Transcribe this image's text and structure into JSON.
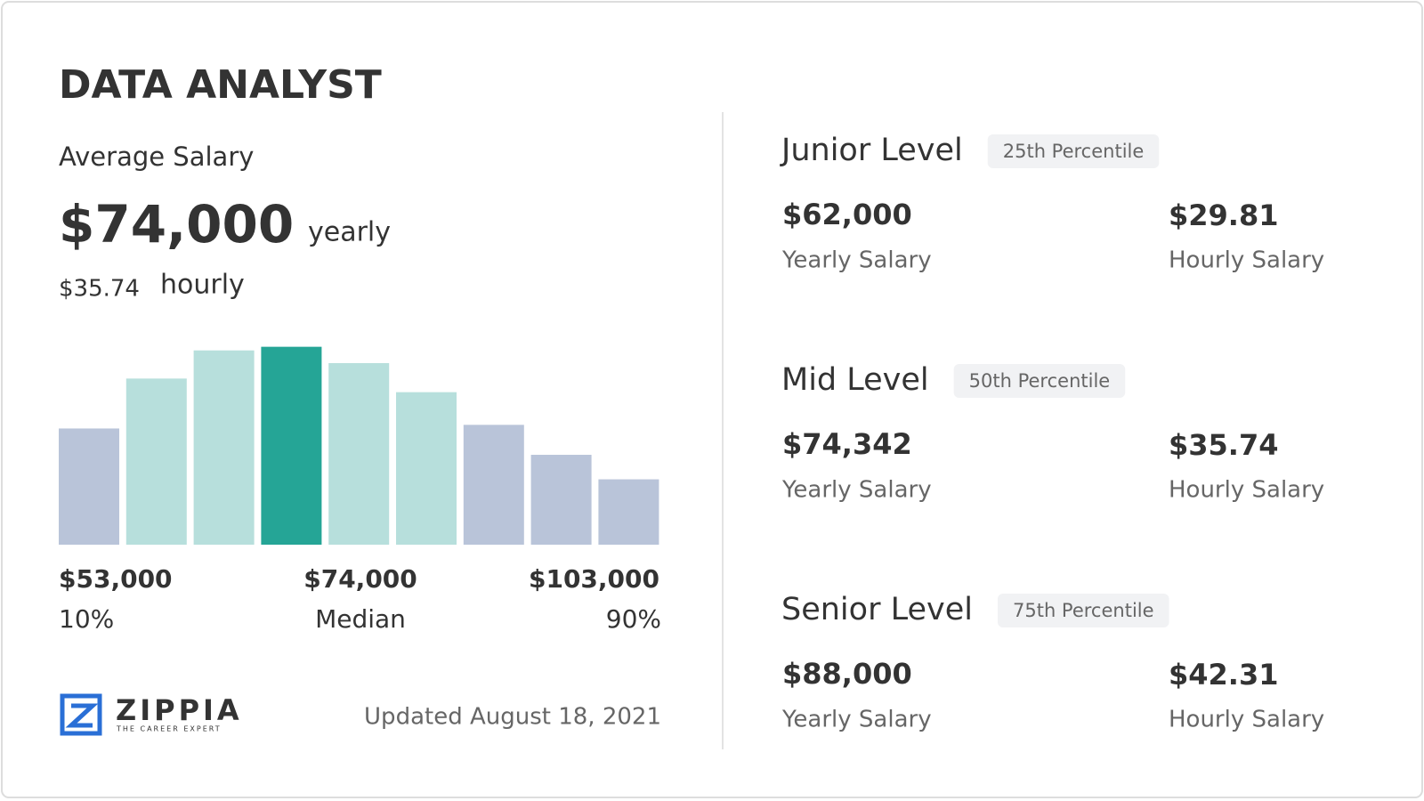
{
  "title": "DATA ANALYST",
  "average": {
    "label": "Average Salary",
    "yearly": "$74,000",
    "yearly_unit": "yearly",
    "hourly": "$35.74",
    "hourly_unit": "hourly"
  },
  "histogram": {
    "values": [
      128,
      183,
      214,
      218,
      200,
      168,
      132,
      99,
      72
    ],
    "colors": [
      "#b9c4d9",
      "#b7dfdc",
      "#b7dfdc",
      "#25a596",
      "#b7dfdc",
      "#b7dfdc",
      "#b9c4d9",
      "#b9c4d9",
      "#b9c4d9"
    ]
  },
  "axis": [
    {
      "amount": "$53,000",
      "caption": "10%"
    },
    {
      "amount": "$74,000",
      "caption": "Median"
    },
    {
      "amount": "$103,000",
      "caption": "90%"
    }
  ],
  "footer": {
    "brand": "ZIPPIA",
    "tagline": "THE CAREER EXPERT",
    "updated": "Updated August 18, 2021"
  },
  "levels": [
    {
      "name": "Junior Level",
      "badge": "25th Percentile",
      "yearly": "$62,000",
      "yearly_label": "Yearly Salary",
      "hourly": "$29.81",
      "hourly_label": "Hourly Salary"
    },
    {
      "name": "Mid Level",
      "badge": "50th Percentile",
      "yearly": "$74,342",
      "yearly_label": "Yearly Salary",
      "hourly": "$35.74",
      "hourly_label": "Hourly Salary"
    },
    {
      "name": "Senior Level",
      "badge": "75th Percentile",
      "yearly": "$88,000",
      "yearly_label": "Yearly Salary",
      "hourly": "$42.31",
      "hourly_label": "Hourly Salary"
    }
  ]
}
